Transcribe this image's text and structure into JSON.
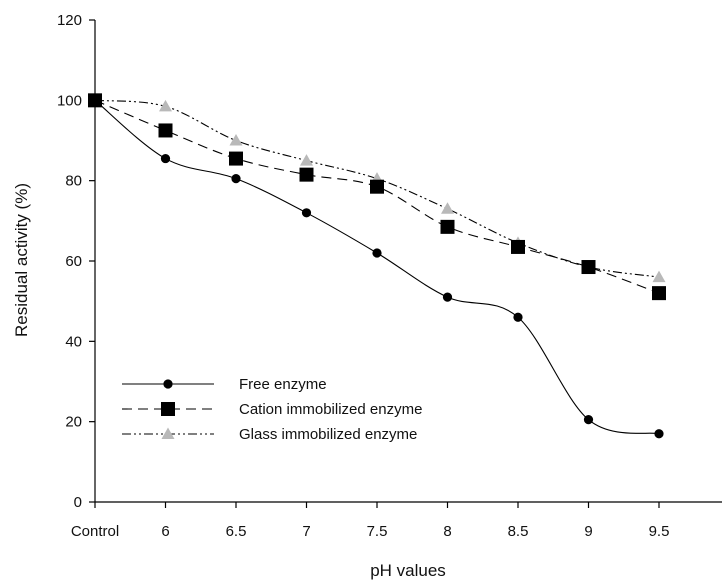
{
  "chart_data": {
    "type": "line",
    "xlabel": "pH values",
    "ylabel": "Residual activity (%)",
    "categories": [
      "Control",
      "6",
      "6.5",
      "7",
      "7.5",
      "8",
      "8.5",
      "9",
      "9.5"
    ],
    "ylim": [
      0,
      120
    ],
    "yticks": [
      0,
      20,
      40,
      60,
      80,
      100,
      120
    ],
    "grid": false,
    "legend_position": "bottom-left",
    "series": [
      {
        "name": "Free enzyme",
        "marker": "circle",
        "line": "solid",
        "color": "#000000",
        "values": [
          100,
          85.5,
          80.5,
          72,
          62,
          51,
          46,
          20.5,
          17
        ]
      },
      {
        "name": "Cation immobilized enzyme",
        "marker": "square",
        "line": "dashed",
        "color": "#000000",
        "values": [
          100,
          92.5,
          85.5,
          81.5,
          78.5,
          68.5,
          63.5,
          58.5,
          52
        ]
      },
      {
        "name": "Glass immobilized enzyme",
        "marker": "triangle",
        "line": "dash-dot-dot",
        "color": "#000000",
        "marker_color": "#b9b9b9",
        "values": [
          100,
          98.5,
          90,
          85,
          80.5,
          73,
          64.5,
          58.5,
          56
        ]
      }
    ]
  }
}
